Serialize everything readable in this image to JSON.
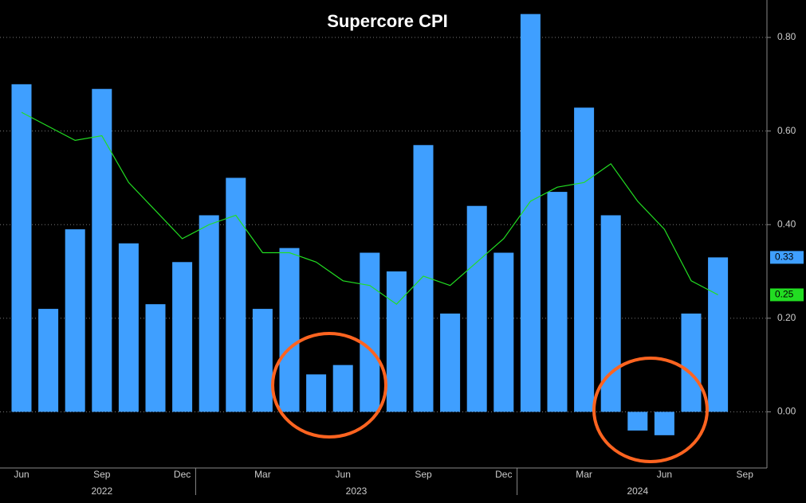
{
  "chart_data": {
    "type": "bar",
    "title": "Supercore CPI",
    "categories": [
      "Jun",
      null,
      null,
      "Sep",
      null,
      null,
      "Dec",
      null,
      null,
      "Mar",
      null,
      null,
      "Jun",
      null,
      null,
      "Sep",
      null,
      null,
      "Dec",
      null,
      null,
      "Mar",
      null,
      null,
      "Jun",
      null,
      null,
      "Sep"
    ],
    "x_groups": [
      {
        "label": "2022",
        "start": 0,
        "end": 6
      },
      {
        "label": "2023",
        "start": 7,
        "end": 18
      },
      {
        "label": "2024",
        "start": 19,
        "end": 27
      }
    ],
    "series": [
      {
        "type": "bar",
        "color": "#3f9fff",
        "values": [
          0.7,
          0.22,
          0.39,
          0.69,
          0.36,
          0.23,
          0.32,
          0.42,
          0.5,
          0.22,
          0.35,
          0.08,
          0.1,
          0.34,
          0.3,
          0.57,
          0.21,
          0.44,
          0.34,
          0.85,
          0.47,
          0.65,
          0.42,
          -0.04,
          -0.05,
          0.21,
          0.33,
          null
        ]
      },
      {
        "type": "line",
        "color": "#22dd22",
        "values": [
          0.64,
          0.61,
          0.58,
          0.59,
          0.49,
          0.43,
          0.37,
          0.4,
          0.42,
          0.34,
          0.34,
          0.32,
          0.28,
          0.27,
          0.23,
          0.29,
          0.27,
          0.32,
          0.37,
          0.45,
          0.48,
          0.49,
          0.53,
          0.45,
          0.39,
          0.28,
          0.25,
          null
        ]
      }
    ],
    "ylim": [
      -0.12,
      0.88
    ],
    "yticks": [
      {
        "value": 0,
        "label": "0.00"
      },
      {
        "value": 0.2,
        "label": "0.20"
      },
      {
        "value": 0.4,
        "label": "0.40"
      },
      {
        "value": 0.6,
        "label": "0.60"
      },
      {
        "value": 0.8,
        "label": "0.80"
      }
    ],
    "grid": true
  }
}
